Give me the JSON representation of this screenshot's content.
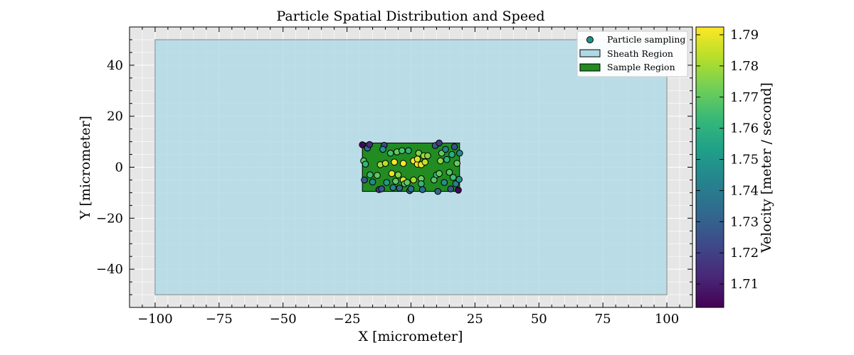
{
  "chart_data": {
    "type": "scatter",
    "title": "Particle Spatial Distribution and Speed",
    "xlabel": "X [micrometer]",
    "ylabel": "Y [micrometer]",
    "xlim": [
      -110,
      110
    ],
    "ylim": [
      -55,
      55
    ],
    "xticks": [
      -100,
      -75,
      -50,
      -25,
      0,
      25,
      50,
      75,
      100
    ],
    "yticks": [
      -40,
      -20,
      0,
      20,
      40
    ],
    "xtick_labels": [
      "−100",
      "−75",
      "−50",
      "−25",
      "0",
      "25",
      "50",
      "75",
      "100"
    ],
    "ytick_labels": [
      "−40",
      "−20",
      "0",
      "20",
      "40"
    ],
    "grid": true,
    "legend_position": "top-right",
    "legend": [
      {
        "label": "Particle sampling",
        "kind": "marker"
      },
      {
        "label": "Sheath Region",
        "kind": "patch",
        "color": "#add8e6"
      },
      {
        "label": "Sample Region",
        "kind": "patch",
        "color": "#228b22"
      }
    ],
    "regions": [
      {
        "name": "Sheath Region",
        "x": [
          -100,
          100
        ],
        "y": [
          -50,
          50
        ],
        "color": "#add8e6"
      },
      {
        "name": "Sample Region",
        "x": [
          -19,
          19
        ],
        "y": [
          -9.5,
          9.5
        ],
        "color": "#228b22"
      }
    ],
    "colorbar": {
      "label": "Velocity [meter / second]",
      "colormap": "viridis",
      "range": [
        1.7025,
        1.7925
      ],
      "ticks": [
        1.71,
        1.72,
        1.73,
        1.74,
        1.75,
        1.76,
        1.77,
        1.78,
        1.79
      ],
      "tick_labels": [
        "1.71",
        "1.72",
        "1.73",
        "1.74",
        "1.75",
        "1.76",
        "1.77",
        "1.78",
        "1.79"
      ]
    },
    "points": [
      {
        "x": -19.0,
        "y": 8.8,
        "v": 1.704
      },
      {
        "x": -17.0,
        "y": 7.5,
        "v": 1.735
      },
      {
        "x": -16.2,
        "y": 8.9,
        "v": 1.713
      },
      {
        "x": -18.5,
        "y": 2.5,
        "v": 1.768
      },
      {
        "x": -17.8,
        "y": 1.2,
        "v": 1.762
      },
      {
        "x": -18.2,
        "y": -5.0,
        "v": 1.73
      },
      {
        "x": -16.0,
        "y": -3.0,
        "v": 1.764
      },
      {
        "x": -15.0,
        "y": -5.8,
        "v": 1.745
      },
      {
        "x": -13.2,
        "y": -3.2,
        "v": 1.77
      },
      {
        "x": -12.5,
        "y": -8.8,
        "v": 1.718
      },
      {
        "x": -11.5,
        "y": -8.5,
        "v": 1.727
      },
      {
        "x": -10.5,
        "y": 8.6,
        "v": 1.722
      },
      {
        "x": -11.0,
        "y": 7.0,
        "v": 1.748
      },
      {
        "x": -12.0,
        "y": 1.0,
        "v": 1.78
      },
      {
        "x": -10.0,
        "y": 1.5,
        "v": 1.783
      },
      {
        "x": -9.5,
        "y": -6.0,
        "v": 1.752
      },
      {
        "x": -8.0,
        "y": 5.5,
        "v": 1.765
      },
      {
        "x": -7.5,
        "y": -2.5,
        "v": 1.789
      },
      {
        "x": -6.5,
        "y": 2.0,
        "v": 1.792
      },
      {
        "x": -7.0,
        "y": -8.0,
        "v": 1.742
      },
      {
        "x": -6.0,
        "y": -5.5,
        "v": 1.77
      },
      {
        "x": -5.5,
        "y": 6.0,
        "v": 1.77
      },
      {
        "x": -5.0,
        "y": -3.0,
        "v": 1.776
      },
      {
        "x": -4.5,
        "y": -8.2,
        "v": 1.733
      },
      {
        "x": -3.5,
        "y": 6.5,
        "v": 1.766
      },
      {
        "x": -3.0,
        "y": -5.0,
        "v": 1.788
      },
      {
        "x": -3.0,
        "y": 1.5,
        "v": 1.793
      },
      {
        "x": -2.5,
        "y": -6.5,
        "v": 1.768
      },
      {
        "x": -1.5,
        "y": -6.0,
        "v": 1.77
      },
      {
        "x": -1.0,
        "y": 6.5,
        "v": 1.76
      },
      {
        "x": -0.5,
        "y": -9.2,
        "v": 1.726
      },
      {
        "x": 0.0,
        "y": -8.5,
        "v": 1.738
      },
      {
        "x": 1.0,
        "y": -5.0,
        "v": 1.781
      },
      {
        "x": 1.0,
        "y": 2.5,
        "v": 1.792
      },
      {
        "x": 2.5,
        "y": 1.2,
        "v": 1.791
      },
      {
        "x": 2.5,
        "y": 3.2,
        "v": 1.788
      },
      {
        "x": 3.0,
        "y": 5.5,
        "v": 1.775
      },
      {
        "x": 4.0,
        "y": 1.0,
        "v": 1.79
      },
      {
        "x": 4.0,
        "y": -4.5,
        "v": 1.772
      },
      {
        "x": 4.0,
        "y": -6.5,
        "v": 1.762
      },
      {
        "x": 4.5,
        "y": -8.8,
        "v": 1.734
      },
      {
        "x": 5.0,
        "y": 4.5,
        "v": 1.779
      },
      {
        "x": 5.5,
        "y": 2.0,
        "v": 1.784
      },
      {
        "x": 6.5,
        "y": 4.5,
        "v": 1.776
      },
      {
        "x": 9.0,
        "y": -5.0,
        "v": 1.768
      },
      {
        "x": 9.5,
        "y": 8.5,
        "v": 1.728
      },
      {
        "x": 10.0,
        "y": -3.0,
        "v": 1.764
      },
      {
        "x": 10.5,
        "y": -9.5,
        "v": 1.732
      },
      {
        "x": 11.0,
        "y": 9.5,
        "v": 1.718
      },
      {
        "x": 11.0,
        "y": -2.5,
        "v": 1.77
      },
      {
        "x": 11.5,
        "y": 2.5,
        "v": 1.777
      },
      {
        "x": 12.0,
        "y": 5.5,
        "v": 1.77
      },
      {
        "x": 13.0,
        "y": -6.0,
        "v": 1.748
      },
      {
        "x": 13.5,
        "y": 7.0,
        "v": 1.742
      },
      {
        "x": 14.0,
        "y": 3.0,
        "v": 1.76
      },
      {
        "x": 15.0,
        "y": -2.0,
        "v": 1.768
      },
      {
        "x": 15.5,
        "y": -8.5,
        "v": 1.728
      },
      {
        "x": 16.0,
        "y": 5.0,
        "v": 1.758
      },
      {
        "x": 16.5,
        "y": -4.0,
        "v": 1.765
      },
      {
        "x": 17.0,
        "y": 8.0,
        "v": 1.725
      },
      {
        "x": 17.5,
        "y": -6.5,
        "v": 1.742
      },
      {
        "x": 18.0,
        "y": 1.5,
        "v": 1.772
      },
      {
        "x": 18.5,
        "y": -9.0,
        "v": 1.704
      },
      {
        "x": 19.0,
        "y": 5.5,
        "v": 1.745
      },
      {
        "x": 18.8,
        "y": -4.8,
        "v": 1.75
      }
    ]
  }
}
